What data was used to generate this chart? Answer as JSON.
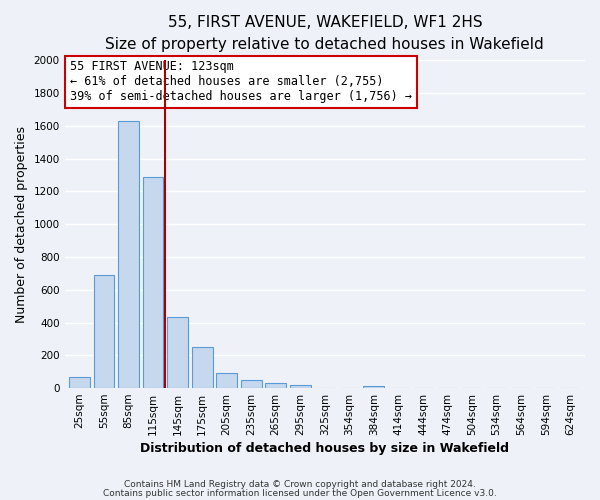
{
  "title": "55, FIRST AVENUE, WAKEFIELD, WF1 2HS",
  "subtitle": "Size of property relative to detached houses in Wakefield",
  "xlabel": "Distribution of detached houses by size in Wakefield",
  "ylabel": "Number of detached properties",
  "categories": [
    "25sqm",
    "55sqm",
    "85sqm",
    "115sqm",
    "145sqm",
    "175sqm",
    "205sqm",
    "235sqm",
    "265sqm",
    "295sqm",
    "325sqm",
    "354sqm",
    "384sqm",
    "414sqm",
    "444sqm",
    "474sqm",
    "504sqm",
    "534sqm",
    "564sqm",
    "594sqm",
    "624sqm"
  ],
  "values": [
    65,
    690,
    1630,
    1285,
    435,
    252,
    90,
    50,
    30,
    20,
    0,
    0,
    15,
    0,
    0,
    0,
    0,
    0,
    0,
    0,
    0
  ],
  "bar_color": "#c5d8ee",
  "bar_edge_color": "#5b9bd5",
  "vline_color": "#aa0000",
  "annotation_text": "55 FIRST AVENUE: 123sqm\n← 61% of detached houses are smaller (2,755)\n39% of semi-detached houses are larger (1,756) →",
  "annotation_box_color": "#cc0000",
  "ylim": [
    0,
    2000
  ],
  "yticks": [
    0,
    200,
    400,
    600,
    800,
    1000,
    1200,
    1400,
    1600,
    1800,
    2000
  ],
  "footer_line1": "Contains HM Land Registry data © Crown copyright and database right 2024.",
  "footer_line2": "Contains public sector information licensed under the Open Government Licence v3.0.",
  "bg_color": "#eef2f8",
  "plot_bg_color": "#eef2f8",
  "grid_color": "#ffffff",
  "title_fontsize": 11,
  "subtitle_fontsize": 9.5,
  "axis_label_fontsize": 9,
  "tick_fontsize": 7.5,
  "footer_fontsize": 6.5,
  "annotation_fontsize": 8.5
}
